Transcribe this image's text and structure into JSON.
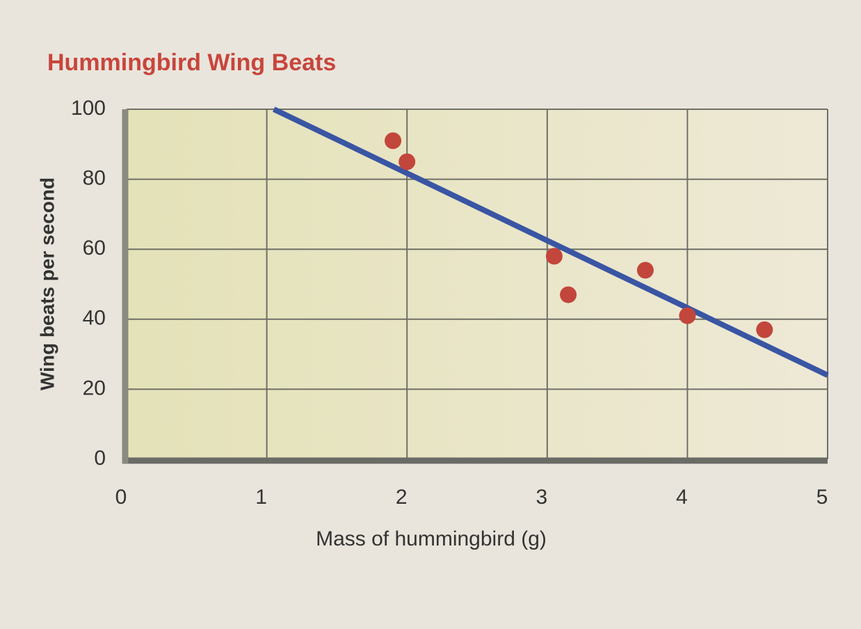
{
  "chart_data": {
    "type": "scatter",
    "title": "Hummingbird Wing Beats",
    "xlabel": "Mass of hummingbird (g)",
    "ylabel": "Wing beats per second",
    "xlim": [
      0,
      5
    ],
    "ylim": [
      0,
      100
    ],
    "xticks": [
      0,
      1,
      2,
      3,
      4,
      5
    ],
    "yticks": [
      0,
      20,
      40,
      60,
      80,
      100
    ],
    "grid": true,
    "points": {
      "color": "#c2463b",
      "x": [
        1.9,
        2.0,
        3.05,
        3.15,
        3.7,
        4.0,
        4.55
      ],
      "y": [
        91,
        85,
        58,
        47,
        54,
        41,
        37
      ]
    },
    "trend_line": {
      "color": "#3a55a3",
      "x": [
        1.05,
        5
      ],
      "y": [
        100,
        24
      ]
    }
  }
}
